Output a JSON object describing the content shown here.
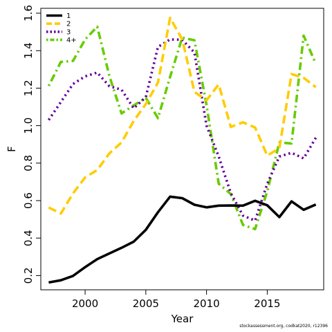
{
  "chart_data": {
    "type": "line",
    "title": "",
    "xlabel": "Year",
    "ylabel": "F",
    "xlim": [
      1996.35,
      2019.65
    ],
    "ylim": [
      0.124,
      1.626
    ],
    "x_ticks": [
      2000,
      2005,
      2010,
      2015
    ],
    "y_ticks": [
      0.2,
      0.4,
      0.6,
      0.8,
      1.0,
      1.2,
      1.4,
      1.6
    ],
    "x_tick_labels": [
      "2000",
      "2005",
      "2010",
      "2015"
    ],
    "y_tick_labels": [
      "0.2",
      "0.4",
      "0.6",
      "0.8",
      "1.0",
      "1.2",
      "1.4",
      "1.6"
    ],
    "legend_position": "top-left",
    "grid": false,
    "x": [
      1997,
      1998,
      1999,
      2000,
      2001,
      2002,
      2003,
      2004,
      2005,
      2006,
      2007,
      2008,
      2009,
      2010,
      2011,
      2012,
      2013,
      2014,
      2015,
      2016,
      2017,
      2018,
      2019
    ],
    "series": [
      {
        "name": "1",
        "color": "#000000",
        "dash": "solid",
        "values": [
          0.163,
          0.175,
          0.198,
          0.245,
          0.288,
          0.318,
          0.348,
          0.381,
          0.444,
          0.538,
          0.621,
          0.613,
          0.578,
          0.564,
          0.573,
          0.574,
          0.573,
          0.599,
          0.575,
          0.512,
          0.596,
          0.551,
          0.579
        ]
      },
      {
        "name": "2",
        "color": "#ffcc00",
        "dash": "dashed",
        "values": [
          0.563,
          0.531,
          0.638,
          0.724,
          0.763,
          0.852,
          0.91,
          1.025,
          1.115,
          1.23,
          1.575,
          1.46,
          1.18,
          1.135,
          1.22,
          0.993,
          1.018,
          0.99,
          0.84,
          0.88,
          1.275,
          1.255,
          1.205
        ]
      },
      {
        "name": "3",
        "color": "#66009a",
        "dash": "dotted",
        "values": [
          1.03,
          1.126,
          1.222,
          1.263,
          1.283,
          1.21,
          1.192,
          1.092,
          1.152,
          1.42,
          1.46,
          1.458,
          1.39,
          1.0,
          0.835,
          0.64,
          0.52,
          0.493,
          0.69,
          0.835,
          0.855,
          0.825,
          0.935
        ]
      },
      {
        "name": "4+",
        "color": "#66cc00",
        "dash": "dotdash",
        "values": [
          1.212,
          1.34,
          1.345,
          1.46,
          1.528,
          1.264,
          1.065,
          1.108,
          1.148,
          1.04,
          1.26,
          1.47,
          1.455,
          1.11,
          0.69,
          0.635,
          0.47,
          0.448,
          0.65,
          0.91,
          0.905,
          1.48,
          1.33
        ]
      }
    ]
  },
  "footnote": "stockassessment.org, codkat2020, r12396"
}
